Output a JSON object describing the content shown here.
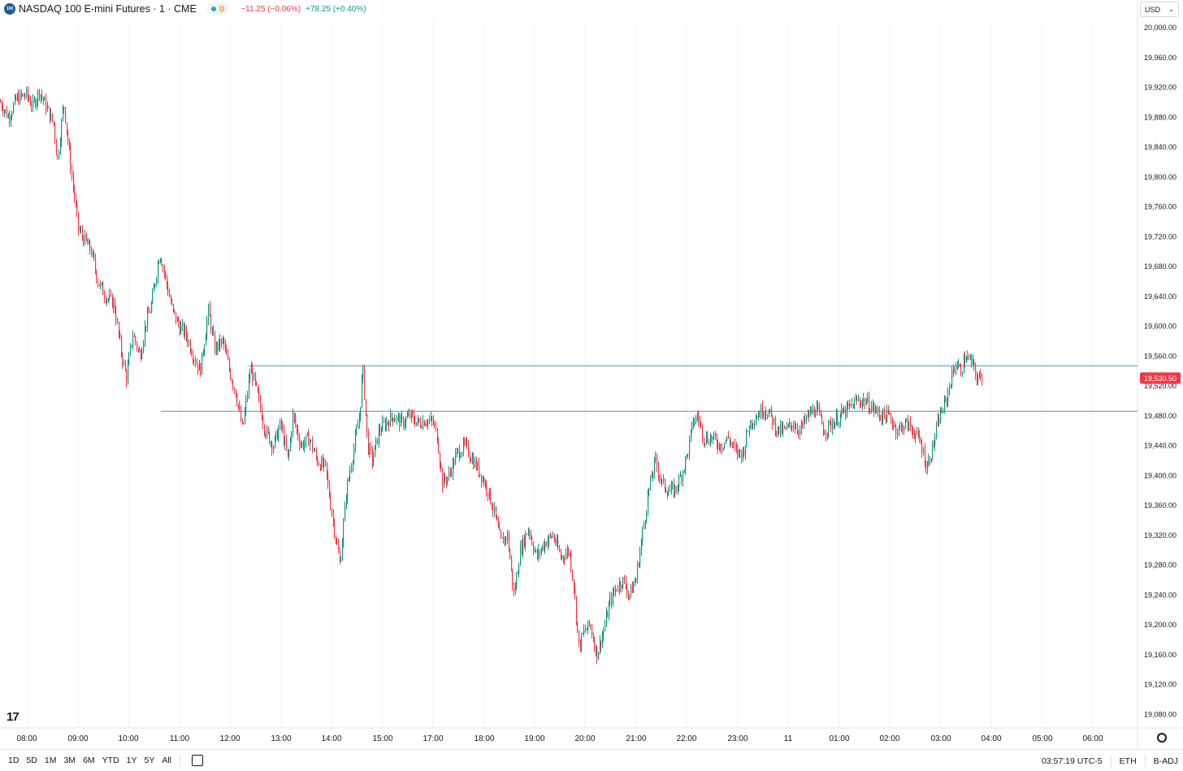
{
  "header": {
    "symbol_badge": "100",
    "title": "NASDAQ 100 E-mini Futures · 1 · CME",
    "status_letter": "D",
    "change_negative": "−11.25 (−0.06%)",
    "change_positive": "+78.25 (+0.40%)"
  },
  "currency": {
    "label": "USD"
  },
  "price_axis": {
    "ticks": [
      "20,000.00",
      "19,960.00",
      "19,920.00",
      "19,880.00",
      "19,840.00",
      "19,800.00",
      "19,760.00",
      "19,720.00",
      "19,680.00",
      "19,640.00",
      "19,600.00",
      "19,560.00",
      "19,520.00",
      "19,480.00",
      "19,440.00",
      "19,400.00",
      "19,360.00",
      "19,320.00",
      "19,280.00",
      "19,240.00",
      "19,200.00",
      "19,160.00",
      "19,120.00",
      "19,080.00"
    ],
    "last_price_label": "19,530.50",
    "last_price": 19530.5
  },
  "time_axis": {
    "ticks": [
      "08:00",
      "09:00",
      "10:00",
      "11:00",
      "12:00",
      "13:00",
      "14:00",
      "15:00",
      "17:00",
      "18:00",
      "19:00",
      "20:00",
      "21:00",
      "22:00",
      "23:00",
      "11",
      "01:00",
      "02:00",
      "03:00",
      "04:00",
      "05:00",
      "06:00"
    ]
  },
  "horizontal_lines": [
    19547,
    19486
  ],
  "colors": {
    "up": "#089981",
    "down": "#f23645",
    "level": "#4a90b8",
    "last_price_bg": "#f23645"
  },
  "bottom_bar": {
    "ranges": [
      "1D",
      "5D",
      "1M",
      "3M",
      "6M",
      "YTD",
      "1Y",
      "5Y",
      "All"
    ],
    "clock": "03:57:19 UTC-5",
    "session": "ETH",
    "adjust": "B-ADJ"
  },
  "chart_data": {
    "type": "candlestick",
    "ylim": [
      19067,
      20008
    ],
    "series_path": [
      [
        0,
        19900
      ],
      [
        10,
        19880
      ],
      [
        20,
        19905
      ],
      [
        32,
        19910
      ],
      [
        40,
        19895
      ],
      [
        48,
        19915
      ],
      [
        58,
        19890
      ],
      [
        66,
        19870
      ],
      [
        70,
        19820
      ],
      [
        78,
        19900
      ],
      [
        88,
        19800
      ],
      [
        96,
        19730
      ],
      [
        104,
        19715
      ],
      [
        112,
        19700
      ],
      [
        120,
        19660
      ],
      [
        130,
        19640
      ],
      [
        140,
        19630
      ],
      [
        148,
        19570
      ],
      [
        155,
        19530
      ],
      [
        163,
        19590
      ],
      [
        172,
        19560
      ],
      [
        178,
        19600
      ],
      [
        186,
        19630
      ],
      [
        196,
        19700
      ],
      [
        204,
        19660
      ],
      [
        212,
        19620
      ],
      [
        220,
        19600
      ],
      [
        228,
        19590
      ],
      [
        238,
        19560
      ],
      [
        246,
        19540
      ],
      [
        256,
        19620
      ],
      [
        264,
        19570
      ],
      [
        274,
        19580
      ],
      [
        282,
        19540
      ],
      [
        290,
        19510
      ],
      [
        298,
        19460
      ],
      [
        308,
        19545
      ],
      [
        316,
        19510
      ],
      [
        326,
        19460
      ],
      [
        336,
        19440
      ],
      [
        345,
        19470
      ],
      [
        354,
        19420
      ],
      [
        360,
        19480
      ],
      [
        370,
        19440
      ],
      [
        380,
        19450
      ],
      [
        390,
        19420
      ],
      [
        400,
        19410
      ],
      [
        408,
        19350
      ],
      [
        418,
        19280
      ],
      [
        426,
        19380
      ],
      [
        434,
        19430
      ],
      [
        442,
        19480
      ],
      [
        446,
        19545
      ],
      [
        452,
        19440
      ],
      [
        458,
        19420
      ],
      [
        466,
        19460
      ],
      [
        474,
        19470
      ],
      [
        484,
        19480
      ],
      [
        494,
        19470
      ],
      [
        504,
        19480
      ],
      [
        514,
        19470
      ],
      [
        524,
        19475
      ],
      [
        533,
        19470
      ],
      [
        538,
        19450
      ],
      [
        544,
        19390
      ],
      [
        552,
        19400
      ],
      [
        562,
        19430
      ],
      [
        572,
        19440
      ],
      [
        582,
        19420
      ],
      [
        592,
        19400
      ],
      [
        600,
        19380
      ],
      [
        608,
        19350
      ],
      [
        616,
        19310
      ],
      [
        624,
        19320
      ],
      [
        632,
        19240
      ],
      [
        640,
        19300
      ],
      [
        650,
        19330
      ],
      [
        660,
        19290
      ],
      [
        670,
        19310
      ],
      [
        680,
        19320
      ],
      [
        690,
        19290
      ],
      [
        700,
        19300
      ],
      [
        706,
        19250
      ],
      [
        712,
        19170
      ],
      [
        718,
        19190
      ],
      [
        726,
        19200
      ],
      [
        734,
        19160
      ],
      [
        742,
        19190
      ],
      [
        750,
        19230
      ],
      [
        758,
        19250
      ],
      [
        766,
        19260
      ],
      [
        774,
        19240
      ],
      [
        782,
        19260
      ],
      [
        790,
        19320
      ],
      [
        798,
        19380
      ],
      [
        806,
        19420
      ],
      [
        814,
        19390
      ],
      [
        822,
        19380
      ],
      [
        830,
        19380
      ],
      [
        838,
        19400
      ],
      [
        846,
        19430
      ],
      [
        852,
        19470
      ],
      [
        858,
        19480
      ],
      [
        866,
        19450
      ],
      [
        876,
        19450
      ],
      [
        886,
        19440
      ],
      [
        896,
        19450
      ],
      [
        906,
        19430
      ],
      [
        914,
        19430
      ],
      [
        922,
        19470
      ],
      [
        930,
        19480
      ],
      [
        940,
        19490
      ],
      [
        948,
        19480
      ],
      [
        956,
        19460
      ],
      [
        966,
        19460
      ],
      [
        976,
        19470
      ],
      [
        984,
        19460
      ],
      [
        994,
        19480
      ],
      [
        1004,
        19490
      ],
      [
        1014,
        19460
      ],
      [
        1024,
        19470
      ],
      [
        1034,
        19480
      ],
      [
        1044,
        19490
      ],
      [
        1054,
        19500
      ],
      [
        1064,
        19500
      ],
      [
        1074,
        19490
      ],
      [
        1084,
        19480
      ],
      [
        1094,
        19480
      ],
      [
        1104,
        19460
      ],
      [
        1114,
        19470
      ],
      [
        1124,
        19460
      ],
      [
        1134,
        19440
      ],
      [
        1140,
        19410
      ],
      [
        1148,
        19440
      ],
      [
        1156,
        19480
      ],
      [
        1164,
        19500
      ],
      [
        1170,
        19530
      ],
      [
        1176,
        19550
      ],
      [
        1182,
        19540
      ],
      [
        1188,
        19560
      ],
      [
        1196,
        19550
      ],
      [
        1202,
        19530
      ],
      [
        1208,
        19530
      ]
    ]
  }
}
